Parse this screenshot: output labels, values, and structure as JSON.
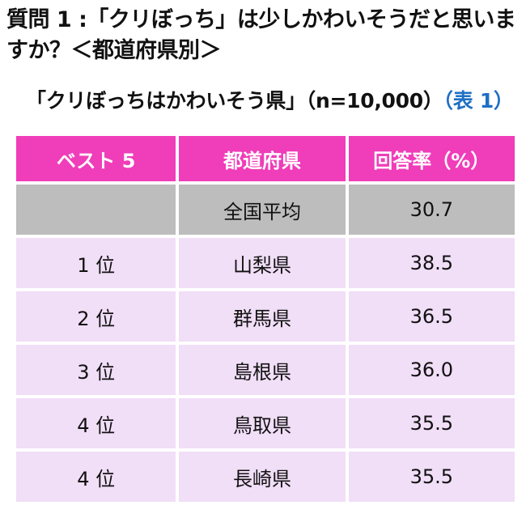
{
  "question": "質問 1 :「クリぼっち」は少しかわいそうだと思いますか？＜都道府県別＞",
  "subtitle": {
    "text": "「クリぼっちはかわいそう県」（n=10,000）",
    "table_ref": "（表 1）"
  },
  "table": {
    "headers": {
      "rank": "ベスト 5",
      "prefecture": "都道府県",
      "rate": "回答率（%）"
    },
    "average": {
      "rank": "",
      "prefecture": "全国平均",
      "rate": "30.7"
    },
    "rows": [
      {
        "rank": "1 位",
        "prefecture": "山梨県",
        "rate": "38.5"
      },
      {
        "rank": "2 位",
        "prefecture": "群馬県",
        "rate": "36.5"
      },
      {
        "rank": "3 位",
        "prefecture": "島根県",
        "rate": "36.0"
      },
      {
        "rank": "4 位",
        "prefecture": "鳥取県",
        "rate": "35.5"
      },
      {
        "rank": "4 位",
        "prefecture": "長崎県",
        "rate": "35.5"
      }
    ]
  },
  "colors": {
    "header_bg": "#f03db9",
    "average_bg": "#bdbdbd",
    "row_bg": "#f1def7",
    "table_ref": "#1f6fc4"
  }
}
